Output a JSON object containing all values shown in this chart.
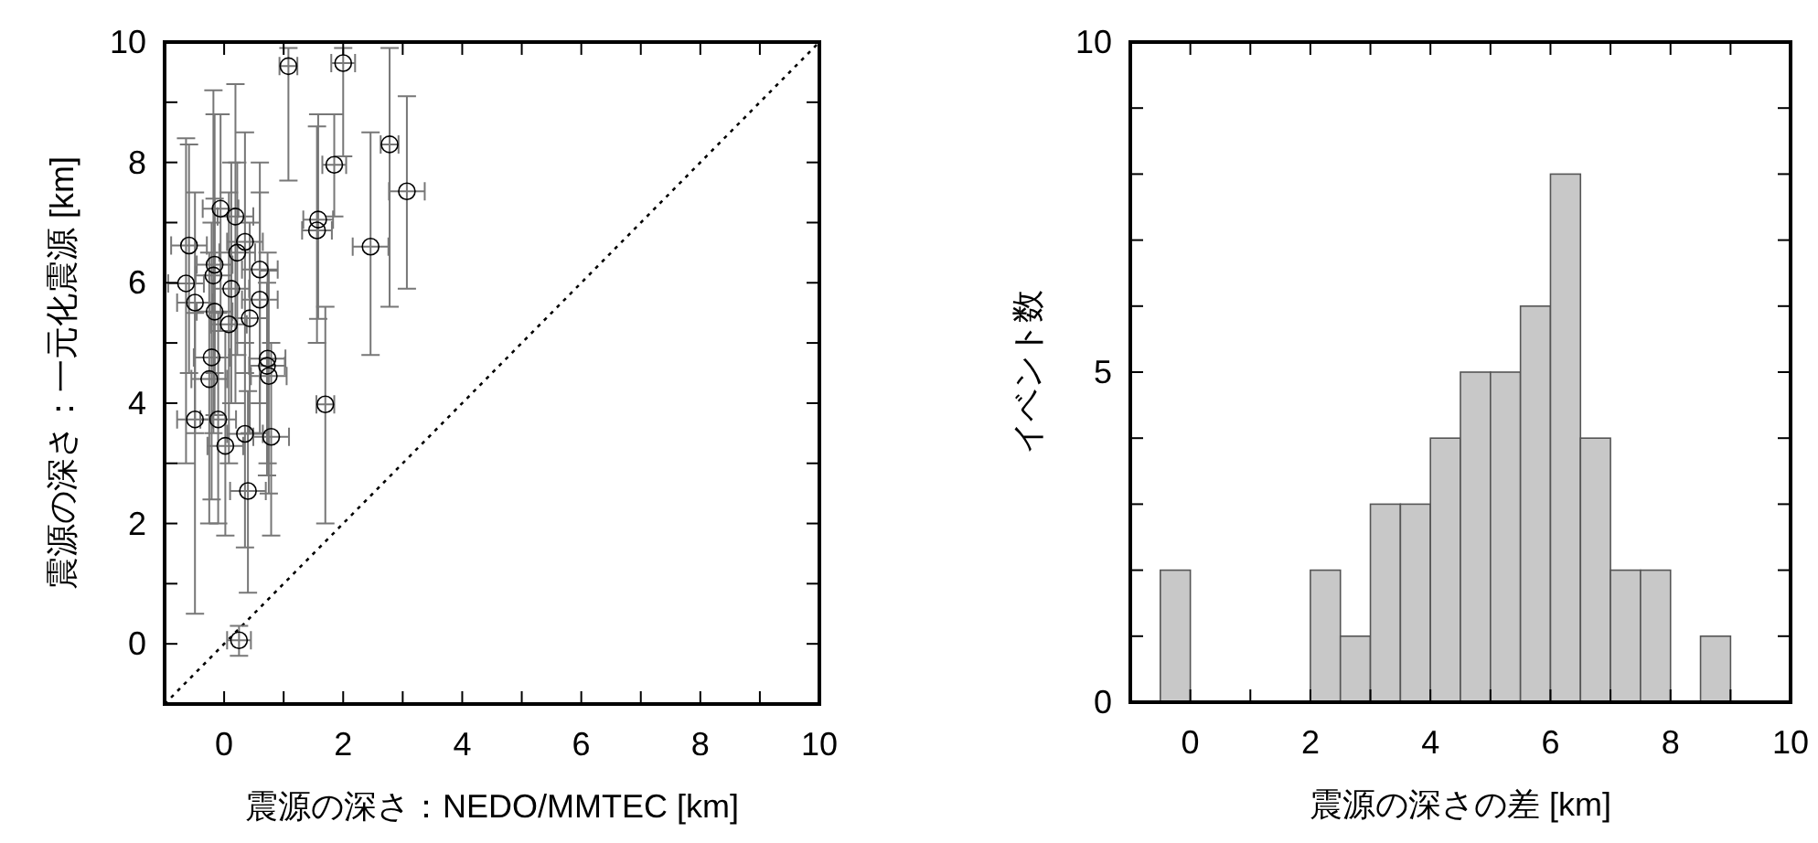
{
  "chart_data": [
    {
      "type": "scatter",
      "xlabel": "震源の深さ：NEDO/MMTEC [km]",
      "ylabel": "震源の深さ：一元化震源 [km]",
      "xlim": [
        -1,
        10
      ],
      "ylim": [
        -1,
        10
      ],
      "xticks": [
        0,
        {
          "value": 1,
          "label": null
        },
        2,
        {
          "value": 3,
          "label": null
        },
        4,
        {
          "value": 5,
          "label": null
        },
        6,
        {
          "value": 7,
          "label": null
        },
        8,
        {
          "value": 9,
          "label": null
        },
        10
      ],
      "yticks": [
        0,
        {
          "value": 1,
          "label": null
        },
        2,
        {
          "value": 3,
          "label": null
        },
        4,
        {
          "value": 5,
          "label": null
        },
        6,
        {
          "value": 7,
          "label": null
        },
        8,
        {
          "value": 9,
          "label": null
        },
        10
      ],
      "grid": false,
      "marker": "circle",
      "series": [
        {
          "type": "line",
          "color": "#000000",
          "line_style": "dotted",
          "marker": "none",
          "x": [
            -1,
            10
          ],
          "values": [
            -1,
            10
          ]
        },
        {
          "color": "#000000",
          "x": [
            1.08,
            2.0,
            2.78,
            3.07,
            2.46,
            1.85,
            1.58,
            1.56,
            1.7,
            0.25,
            0.4,
            -0.49,
            0.02,
            0.35,
            0.79,
            -0.1,
            0.73,
            0.75,
            -0.21,
            -0.25,
            -0.59,
            -0.64,
            -0.49,
            -0.06,
            0.19,
            0.35,
            0.22,
            0.6,
            0.6,
            -0.18,
            -0.16,
            0.08,
            0.43,
            -0.16,
            0.12,
            0.72
          ],
          "values": [
            9.6,
            9.65,
            8.3,
            7.52,
            6.6,
            7.96,
            7.05,
            6.87,
            3.98,
            0.06,
            2.54,
            3.73,
            3.29,
            3.49,
            3.44,
            3.73,
            4.74,
            4.45,
            4.76,
            4.4,
            6.62,
            5.99,
            5.67,
            7.23,
            7.1,
            6.68,
            6.5,
            6.22,
            5.72,
            6.12,
            5.52,
            5.31,
            5.41,
            6.3,
            5.9,
            4.62
          ],
          "xerrors": [
            0.15,
            0.2,
            0.15,
            0.3,
            0.3,
            0.2,
            0.25,
            0.25,
            0.15,
            0.2,
            0.3,
            0.3,
            0.3,
            0.3,
            0.3,
            0.3,
            0.3,
            0.3,
            0.3,
            0.3,
            0.3,
            0.3,
            0.3,
            0.3,
            0.3,
            0.3,
            0.3,
            0.3,
            0.3,
            0.3,
            0.3,
            0.3,
            0.3,
            0.3,
            0.3,
            0.3
          ],
          "errors": [
            [
              7.7,
              9.9
            ],
            [
              8.1,
              9.9
            ],
            [
              5.6,
              9.9
            ],
            [
              5.9,
              9.1
            ],
            [
              4.8,
              8.5
            ],
            [
              7.1,
              8.8
            ],
            [
              5.4,
              8.8
            ],
            [
              5.0,
              8.6
            ],
            [
              2.0,
              5.6
            ],
            [
              -0.2,
              0.3
            ],
            [
              0.85,
              4.2
            ],
            [
              0.5,
              5.5
            ],
            [
              1.8,
              5.2
            ],
            [
              1.6,
              5.0
            ],
            [
              1.8,
              5.0
            ],
            [
              2.0,
              5.5
            ],
            [
              3.0,
              6.5
            ],
            [
              2.5,
              6.2
            ],
            [
              2.4,
              7.0
            ],
            [
              2.0,
              6.5
            ],
            [
              4.5,
              8.3
            ],
            [
              3.0,
              8.4
            ],
            [
              3.5,
              7.5
            ],
            [
              5.2,
              8.8
            ],
            [
              4.0,
              9.3
            ],
            [
              4.5,
              8.5
            ],
            [
              4.8,
              8.0
            ],
            [
              4.0,
              8.0
            ],
            [
              3.5,
              7.5
            ],
            [
              3.5,
              9.2
            ],
            [
              3.8,
              7.4
            ],
            [
              3.0,
              7.5
            ],
            [
              3.5,
              7.0
            ],
            [
              4.5,
              8.8
            ],
            [
              4.0,
              8.0
            ],
            [
              2.8,
              6.0
            ]
          ]
        }
      ]
    },
    {
      "type": "histogram",
      "xlabel": "震源の深さの差 [km]",
      "ylabel": "イベント数",
      "xlim": [
        -1,
        10
      ],
      "ylim": [
        0,
        10
      ],
      "xticks": [
        0,
        {
          "value": 1,
          "label": null
        },
        2,
        {
          "value": 3,
          "label": null
        },
        4,
        {
          "value": 5,
          "label": null
        },
        6,
        {
          "value": 7,
          "label": null
        },
        8,
        {
          "value": 9,
          "label": null
        },
        10
      ],
      "yticks": [
        0,
        {
          "value": 1,
          "label": null
        },
        {
          "value": 2,
          "label": null
        },
        {
          "value": 3,
          "label": null
        },
        {
          "value": 4,
          "label": null
        },
        5,
        {
          "value": 6,
          "label": null
        },
        {
          "value": 7,
          "label": null
        },
        {
          "value": 8,
          "label": null
        },
        {
          "value": 9,
          "label": null
        },
        10
      ],
      "grid": false,
      "color": "#c8c8c8",
      "bins": [
        -0.5,
        0,
        0.5,
        1,
        1.5,
        2,
        2.5,
        3,
        3.5,
        4,
        4.5,
        5,
        5.5,
        6,
        6.5,
        7,
        7.5,
        8,
        8.5,
        9
      ],
      "values": [
        2,
        0,
        0,
        0,
        0,
        2,
        1,
        3,
        3,
        4,
        5,
        5,
        6,
        8,
        4,
        2,
        2,
        0,
        1
      ]
    }
  ]
}
